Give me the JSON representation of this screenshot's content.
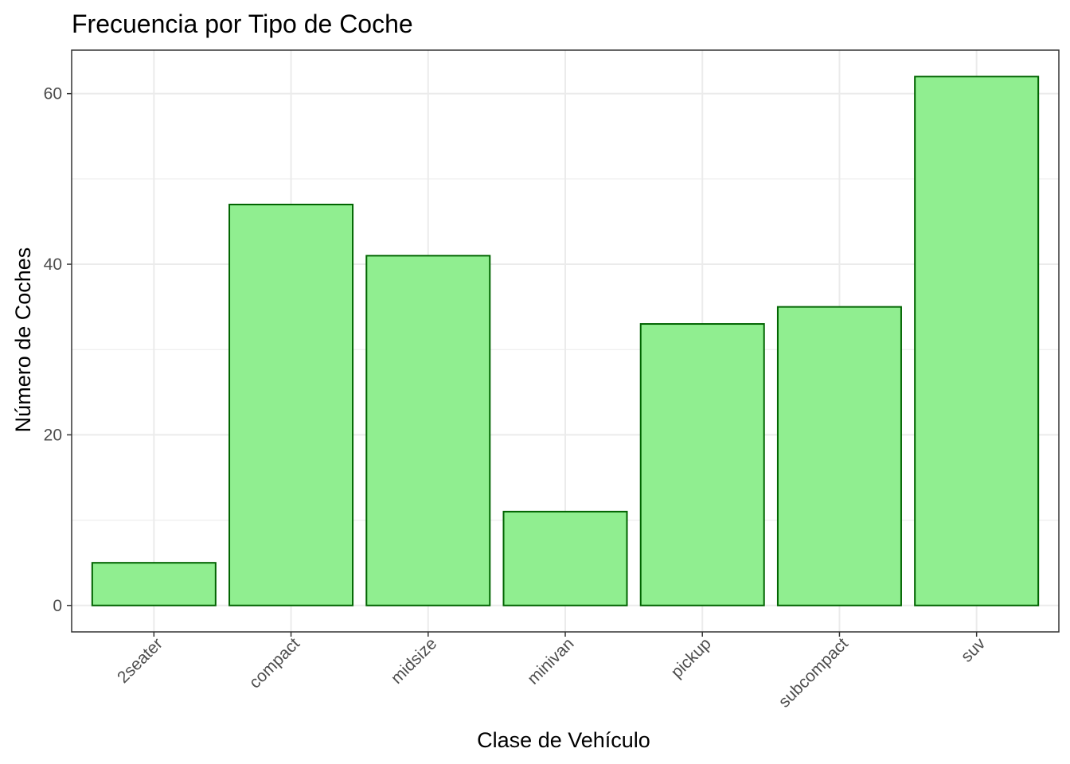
{
  "chart_data": {
    "type": "bar",
    "title": "Frecuencia por Tipo de Coche",
    "xlabel": "Clase de Vehículo",
    "ylabel": "Número de Coches",
    "categories": [
      "2seater",
      "compact",
      "midsize",
      "minivan",
      "pickup",
      "subcompact",
      "suv"
    ],
    "values": [
      5,
      47,
      41,
      11,
      33,
      35,
      62
    ],
    "ylim": [
      -3.1,
      65.1
    ],
    "yticks": [
      0,
      20,
      40,
      60
    ],
    "y_minor_ticks": [
      10,
      30,
      50
    ],
    "grid": true,
    "x_tick_rotation_deg": 45,
    "colors": {
      "bar_fill": "#90ee90",
      "bar_stroke": "#006400",
      "grid": "#ebebeb",
      "panel_border": "#333333",
      "tick_text": "#4d4d4d"
    }
  }
}
